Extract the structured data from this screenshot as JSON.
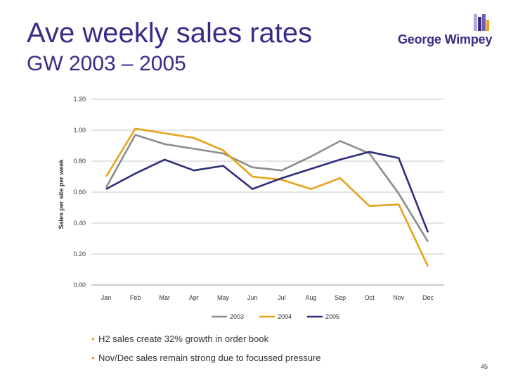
{
  "slide": {
    "title": "Ave weekly sales rates",
    "subtitle": "GW 2003 – 2005",
    "logo_text": "George Wimpey",
    "bullets": [
      "H2 sales create 32% growth in order book",
      "Nov/Dec sales remain strong due to focussed pressure"
    ],
    "page_number": "45"
  },
  "chart_data": {
    "type": "line",
    "title": "",
    "xlabel": "",
    "ylabel": "Sales per site per week",
    "categories": [
      "Jan",
      "Feb",
      "Mar",
      "Apr",
      "May",
      "Jun",
      "Jul",
      "Aug",
      "Sep",
      "Oct",
      "Nov",
      "Dec"
    ],
    "ylim": [
      0,
      1.2
    ],
    "yticks": [
      "0.00",
      "0.20",
      "0.40",
      "0.60",
      "0.80",
      "1.00",
      "1.20"
    ],
    "grid": true,
    "legend_position": "bottom",
    "series": [
      {
        "name": "2003",
        "color": "#8c8c8c",
        "values": [
          0.63,
          0.97,
          0.91,
          0.88,
          0.85,
          0.76,
          0.74,
          0.83,
          0.93,
          0.85,
          0.59,
          0.28
        ]
      },
      {
        "name": "2004",
        "color": "#e8a21a",
        "values": [
          0.7,
          1.01,
          0.98,
          0.95,
          0.87,
          0.7,
          0.68,
          0.62,
          0.69,
          0.51,
          0.52,
          0.12
        ]
      },
      {
        "name": "2005",
        "color": "#2e2e7a",
        "values": [
          0.62,
          0.72,
          0.81,
          0.74,
          0.77,
          0.62,
          0.69,
          0.75,
          0.81,
          0.86,
          0.82,
          0.34
        ]
      }
    ]
  }
}
